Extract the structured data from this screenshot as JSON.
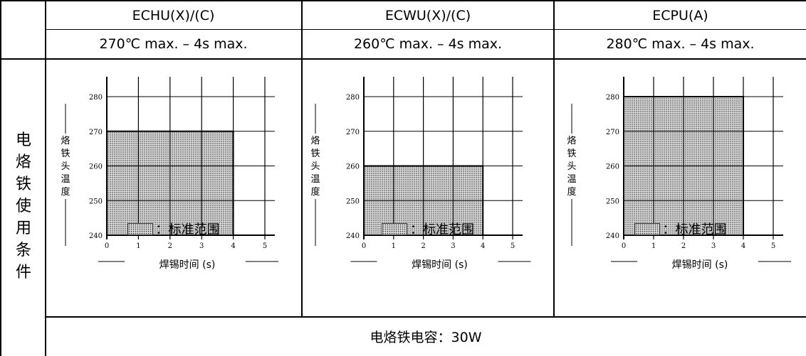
{
  "header": {
    "models": [
      "ECHU(X)/(C)",
      "ECWU(X)/(C)",
      "ECPU(A)"
    ],
    "specs": [
      "270℃ max. – 4s max.",
      "260℃ max. – 4s max.",
      "280℃ max. – 4s max."
    ]
  },
  "row_label": [
    "电",
    "烙",
    "铁",
    "使",
    "用",
    "条",
    "件"
  ],
  "power_text": "电烙铁电容：30W",
  "legend_text": "：标准范围",
  "colors": {
    "border": "#000000",
    "fill": "#d8d8d8",
    "dots": "#222222"
  },
  "chart_data": [
    {
      "type": "area",
      "xlabel": "焊锡时间 (s)",
      "ylabel": "烙铁头温度",
      "x_ticks": [
        "0",
        "1",
        "2",
        "3",
        "4",
        "5"
      ],
      "y_ticks": [
        "240",
        "250",
        "260",
        "270",
        "280"
      ],
      "xlim": [
        0,
        5
      ],
      "ylim": [
        240,
        280
      ],
      "grid": true,
      "region": {
        "x": [
          0,
          4
        ],
        "y": [
          240,
          270
        ]
      }
    },
    {
      "type": "area",
      "xlabel": "焊锡时间 (s)",
      "ylabel": "烙铁头温度",
      "x_ticks": [
        "0",
        "1",
        "2",
        "3",
        "4",
        "5"
      ],
      "y_ticks": [
        "240",
        "250",
        "260",
        "270",
        "280"
      ],
      "xlim": [
        0,
        5
      ],
      "ylim": [
        240,
        280
      ],
      "grid": true,
      "region": {
        "x": [
          0,
          4
        ],
        "y": [
          240,
          260
        ]
      }
    },
    {
      "type": "area",
      "xlabel": "焊锡时间 (s)",
      "ylabel": "烙铁头温度",
      "x_ticks": [
        "0",
        "1",
        "2",
        "3",
        "4",
        "5"
      ],
      "y_ticks": [
        "240",
        "250",
        "260",
        "270",
        "280"
      ],
      "xlim": [
        0,
        5
      ],
      "ylim": [
        240,
        280
      ],
      "grid": true,
      "region": {
        "x": [
          0,
          4
        ],
        "y": [
          240,
          280
        ]
      }
    }
  ]
}
